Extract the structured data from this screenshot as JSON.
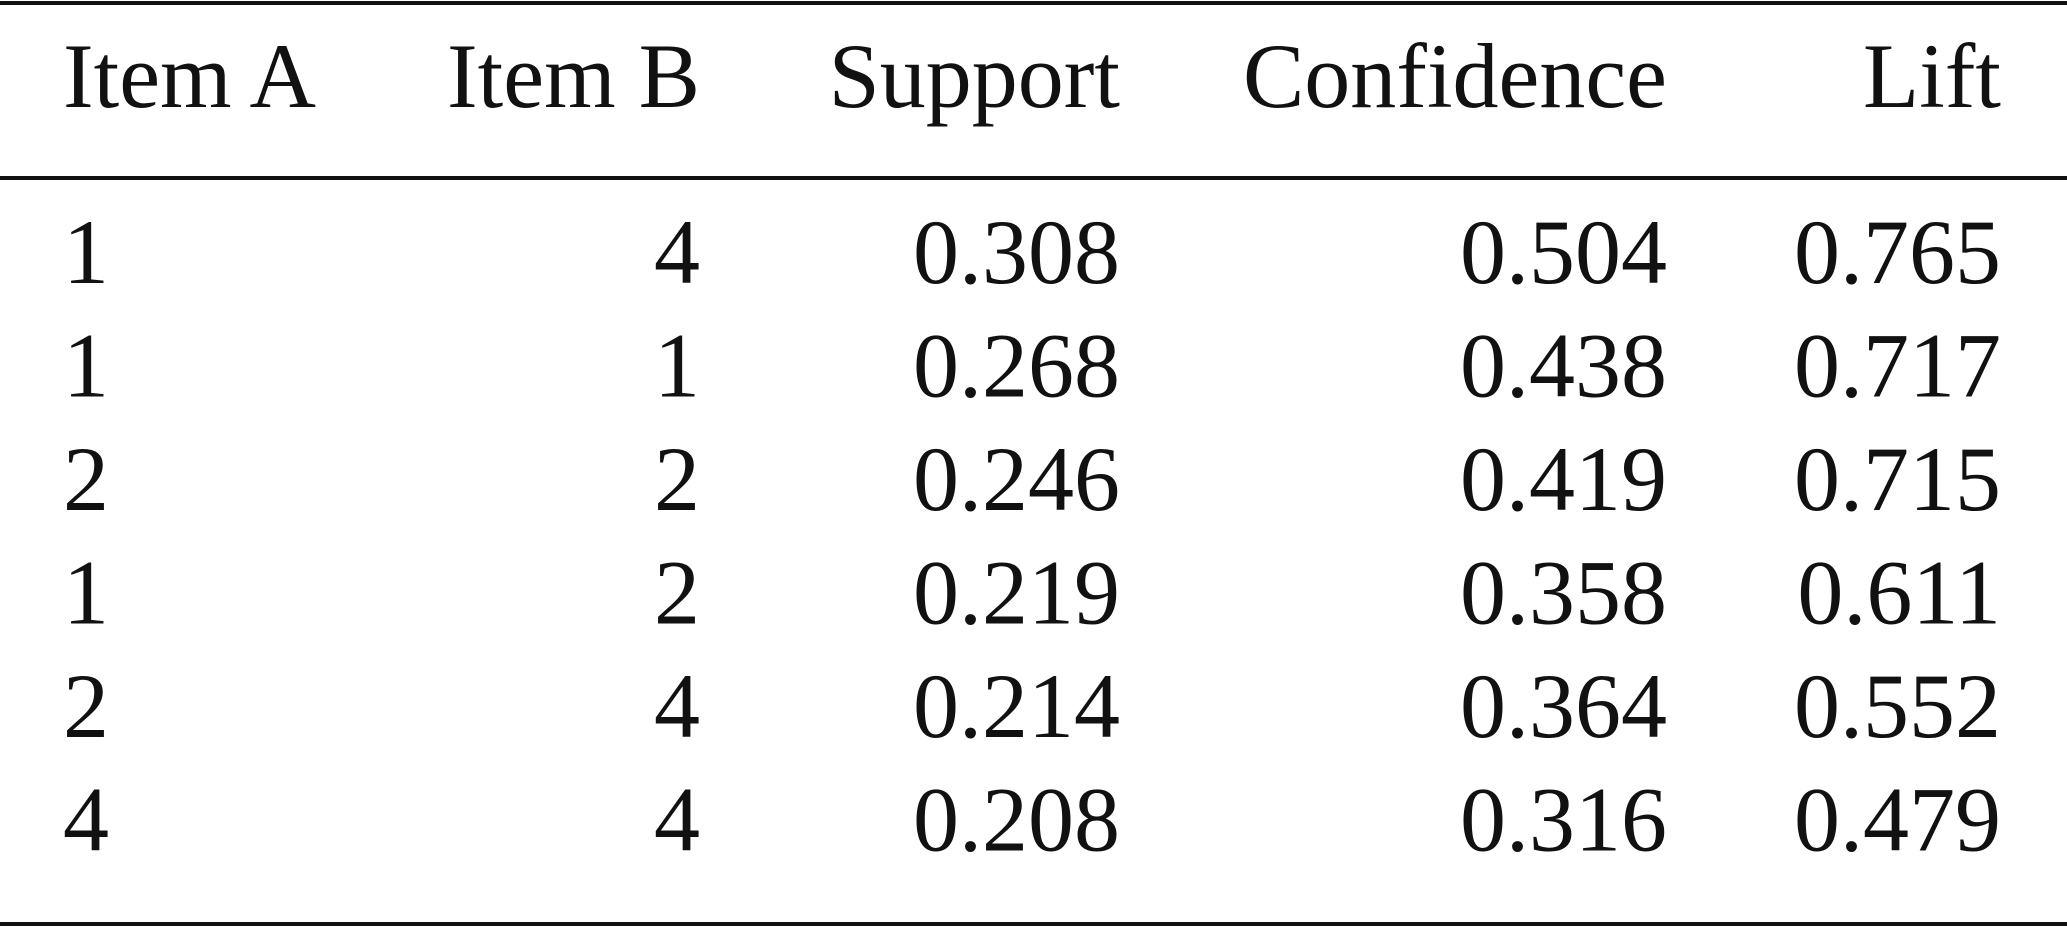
{
  "table": {
    "header": [
      "Item A",
      "Item B",
      "Support",
      "Confidence",
      "Lift"
    ],
    "rows": [
      [
        1,
        4,
        0.308,
        0.504,
        0.765
      ],
      [
        1,
        1,
        0.268,
        0.438,
        0.717
      ],
      [
        2,
        2,
        0.246,
        0.419,
        0.715
      ],
      [
        1,
        2,
        0.219,
        0.358,
        0.611
      ],
      [
        2,
        4,
        0.214,
        0.364,
        0.552
      ],
      [
        4,
        4,
        0.208,
        0.316,
        0.479
      ]
    ]
  }
}
